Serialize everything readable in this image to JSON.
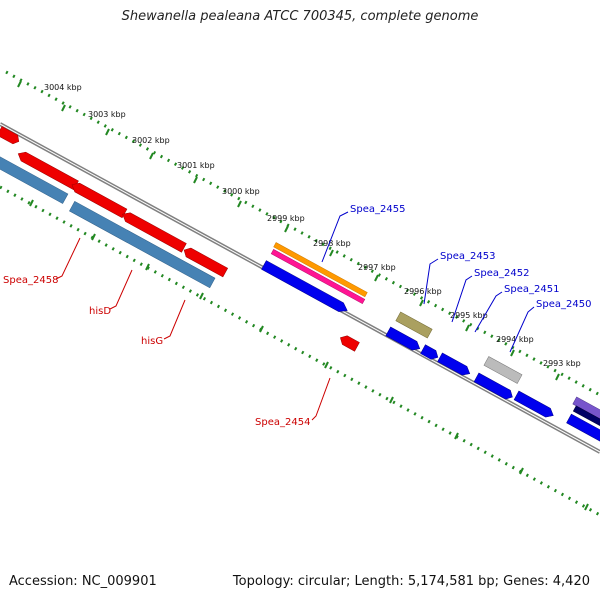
{
  "header": {
    "title": "Shewanella pealeana ATCC 700345, complete genome"
  },
  "footer": {
    "accession": "Accession: NC_009901",
    "summary": "Topology: circular; Length: 5,174,581 bp; Genes: 4,420"
  },
  "ruler": {
    "ticks": [
      "3004 kbp",
      "3003 kbp",
      "3002 kbp",
      "3001 kbp",
      "3000 kbp",
      "2999 kbp",
      "2998 kbp",
      "2997 kbp",
      "2996 kbp",
      "2995 kbp",
      "2994 kbp",
      "2993 kbp"
    ]
  },
  "features": {
    "blue_labels": [
      "Spea_2455",
      "Spea_2453",
      "Spea_2452",
      "Spea_2451",
      "Spea_2450"
    ],
    "red_labels": [
      "Spea_2458",
      "hisD",
      "hisG",
      "Spea_2454"
    ]
  },
  "colors": {
    "forward_gene": "#0000ee",
    "reverse_gene": "#ee0000",
    "steelblue_track": "#4682b4",
    "orange_track": "#ff9900",
    "pink_track": "#ff1493",
    "olive_gene": "#aaa060",
    "gray_gene": "#bbbbbb",
    "purple_gene": "#7755cc",
    "navy_gene": "#000066",
    "ruler_dots": "#228822",
    "backbone": "#808080"
  }
}
